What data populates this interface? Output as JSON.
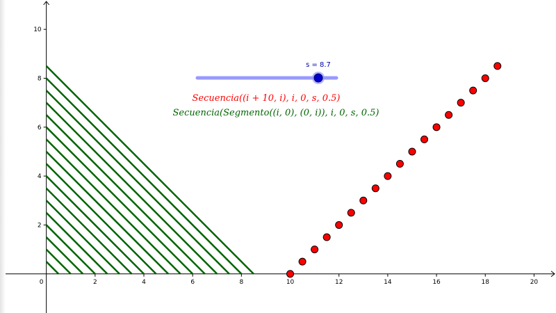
{
  "colors": {
    "background": "#ffffff",
    "axis": "#000000",
    "points_fill": "#ff0000",
    "segments": "#006400",
    "slider_track": "#9999ff",
    "slider_knob": "#0000cc",
    "slider_label": "#0000aa",
    "formula_points": "#ff0000",
    "formula_segments": "#006400"
  },
  "slider": {
    "caption": "s = 8.7",
    "name": "s",
    "value": 8.7,
    "min": 0,
    "max": 10
  },
  "formulas": {
    "points": "Secuencia((i + 10, i), i, 0, s, 0.5)",
    "segments": "Secuencia(Segmento((i, 0), (0, i)), i, 0, s, 0.5)"
  },
  "chart_data": {
    "type": "scatter",
    "xlim": [
      -1.9,
      20.9
    ],
    "ylim": [
      -1.6,
      11.2
    ],
    "grid": false,
    "x_ticks": [
      0,
      2,
      4,
      6,
      8,
      10,
      12,
      14,
      16,
      18,
      20
    ],
    "y_ticks": [
      2,
      4,
      6,
      8,
      10
    ],
    "x_tick_labels": [
      "0",
      "2",
      "4",
      "6",
      "8",
      "10",
      "12",
      "14",
      "16",
      "18",
      "20"
    ],
    "y_tick_labels": [
      "2",
      "4",
      "6",
      "8",
      "10"
    ],
    "points": {
      "x": [
        10,
        10.5,
        11,
        11.5,
        12,
        12.5,
        13,
        13.5,
        14,
        14.5,
        15,
        15.5,
        16,
        16.5,
        17,
        17.5,
        18,
        18.5
      ],
      "y": [
        0,
        0.5,
        1,
        1.5,
        2,
        2.5,
        3,
        3.5,
        4,
        4.5,
        5,
        5.5,
        6,
        6.5,
        7,
        7.5,
        8,
        8.5
      ]
    },
    "segments": {
      "i": [
        0,
        0.5,
        1,
        1.5,
        2,
        2.5,
        3,
        3.5,
        4,
        4.5,
        5,
        5.5,
        6,
        6.5,
        7,
        7.5,
        8,
        8.5
      ]
    }
  }
}
